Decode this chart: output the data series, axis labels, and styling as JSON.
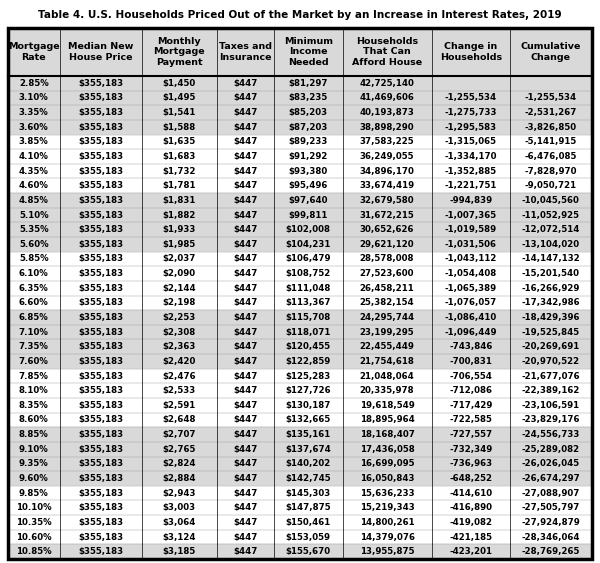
{
  "title": "Table 4. U.S. Households Priced Out of the Market by an Increase in Interest Rates, 2019",
  "headers": [
    "Mortgage\nRate",
    "Median New\nHouse Price",
    "Monthly\nMortgage\nPayment",
    "Taxes and\nInsurance",
    "Minimum\nIncome\nNeeded",
    "Households\nThat Can\nAfford House",
    "Change in\nHouseholds",
    "Cumulative\nChange"
  ],
  "rows": [
    [
      "2.85%",
      "$355,183",
      "$1,450",
      "$447",
      "$81,297",
      "42,725,140",
      "",
      ""
    ],
    [
      "3.10%",
      "$355,183",
      "$1,495",
      "$447",
      "$83,235",
      "41,469,606",
      "-1,255,534",
      "-1,255,534"
    ],
    [
      "3.35%",
      "$355,183",
      "$1,541",
      "$447",
      "$85,203",
      "40,193,873",
      "-1,275,733",
      "-2,531,267"
    ],
    [
      "3.60%",
      "$355,183",
      "$1,588",
      "$447",
      "$87,203",
      "38,898,290",
      "-1,295,583",
      "-3,826,850"
    ],
    [
      "3.85%",
      "$355,183",
      "$1,635",
      "$447",
      "$89,233",
      "37,583,225",
      "-1,315,065",
      "-5,141,915"
    ],
    [
      "4.10%",
      "$355,183",
      "$1,683",
      "$447",
      "$91,292",
      "36,249,055",
      "-1,334,170",
      "-6,476,085"
    ],
    [
      "4.35%",
      "$355,183",
      "$1,732",
      "$447",
      "$93,380",
      "34,896,170",
      "-1,352,885",
      "-7,828,970"
    ],
    [
      "4.60%",
      "$355,183",
      "$1,781",
      "$447",
      "$95,496",
      "33,674,419",
      "-1,221,751",
      "-9,050,721"
    ],
    [
      "4.85%",
      "$355,183",
      "$1,831",
      "$447",
      "$97,640",
      "32,679,580",
      "-994,839",
      "-10,045,560"
    ],
    [
      "5.10%",
      "$355,183",
      "$1,882",
      "$447",
      "$99,811",
      "31,672,215",
      "-1,007,365",
      "-11,052,925"
    ],
    [
      "5.35%",
      "$355,183",
      "$1,933",
      "$447",
      "$102,008",
      "30,652,626",
      "-1,019,589",
      "-12,072,514"
    ],
    [
      "5.60%",
      "$355,183",
      "$1,985",
      "$447",
      "$104,231",
      "29,621,120",
      "-1,031,506",
      "-13,104,020"
    ],
    [
      "5.85%",
      "$355,183",
      "$2,037",
      "$447",
      "$106,479",
      "28,578,008",
      "-1,043,112",
      "-14,147,132"
    ],
    [
      "6.10%",
      "$355,183",
      "$2,090",
      "$447",
      "$108,752",
      "27,523,600",
      "-1,054,408",
      "-15,201,540"
    ],
    [
      "6.35%",
      "$355,183",
      "$2,144",
      "$447",
      "$111,048",
      "26,458,211",
      "-1,065,389",
      "-16,266,929"
    ],
    [
      "6.60%",
      "$355,183",
      "$2,198",
      "$447",
      "$113,367",
      "25,382,154",
      "-1,076,057",
      "-17,342,986"
    ],
    [
      "6.85%",
      "$355,183",
      "$2,253",
      "$447",
      "$115,708",
      "24,295,744",
      "-1,086,410",
      "-18,429,396"
    ],
    [
      "7.10%",
      "$355,183",
      "$2,308",
      "$447",
      "$118,071",
      "23,199,295",
      "-1,096,449",
      "-19,525,845"
    ],
    [
      "7.35%",
      "$355,183",
      "$2,363",
      "$447",
      "$120,455",
      "22,455,449",
      "-743,846",
      "-20,269,691"
    ],
    [
      "7.60%",
      "$355,183",
      "$2,420",
      "$447",
      "$122,859",
      "21,754,618",
      "-700,831",
      "-20,970,522"
    ],
    [
      "7.85%",
      "$355,183",
      "$2,476",
      "$447",
      "$125,283",
      "21,048,064",
      "-706,554",
      "-21,677,076"
    ],
    [
      "8.10%",
      "$355,183",
      "$2,533",
      "$447",
      "$127,726",
      "20,335,978",
      "-712,086",
      "-22,389,162"
    ],
    [
      "8.35%",
      "$355,183",
      "$2,591",
      "$447",
      "$130,187",
      "19,618,549",
      "-717,429",
      "-23,106,591"
    ],
    [
      "8.60%",
      "$355,183",
      "$2,648",
      "$447",
      "$132,665",
      "18,895,964",
      "-722,585",
      "-23,829,176"
    ],
    [
      "8.85%",
      "$355,183",
      "$2,707",
      "$447",
      "$135,161",
      "18,168,407",
      "-727,557",
      "-24,556,733"
    ],
    [
      "9.10%",
      "$355,183",
      "$2,765",
      "$447",
      "$137,674",
      "17,436,058",
      "-732,349",
      "-25,289,082"
    ],
    [
      "9.35%",
      "$355,183",
      "$2,824",
      "$447",
      "$140,202",
      "16,699,095",
      "-736,963",
      "-26,026,045"
    ],
    [
      "9.60%",
      "$355,183",
      "$2,884",
      "$447",
      "$142,745",
      "16,050,843",
      "-648,252",
      "-26,674,297"
    ],
    [
      "9.85%",
      "$355,183",
      "$2,943",
      "$447",
      "$145,303",
      "15,636,233",
      "-414,610",
      "-27,088,907"
    ],
    [
      "10.10%",
      "$355,183",
      "$3,003",
      "$447",
      "$147,875",
      "15,219,343",
      "-416,890",
      "-27,505,797"
    ],
    [
      "10.35%",
      "$355,183",
      "$3,064",
      "$447",
      "$150,461",
      "14,800,261",
      "-419,082",
      "-27,924,879"
    ],
    [
      "10.60%",
      "$355,183",
      "$3,124",
      "$447",
      "$153,059",
      "14,379,076",
      "-421,185",
      "-28,346,064"
    ],
    [
      "10.85%",
      "$355,183",
      "$3,185",
      "$447",
      "$155,670",
      "13,955,875",
      "-423,201",
      "-28,769,265"
    ]
  ],
  "shaded_rows": [
    0,
    1,
    2,
    3,
    8,
    9,
    10,
    11,
    16,
    17,
    18,
    19,
    24,
    25,
    26,
    27,
    32
  ],
  "shaded_color": "#d9d9d9",
  "white_color": "#ffffff",
  "header_bg": "#d9d9d9",
  "border_color": "#000000",
  "title_fontsize": 7.5,
  "font_size": 6.2,
  "header_font_size": 6.8
}
